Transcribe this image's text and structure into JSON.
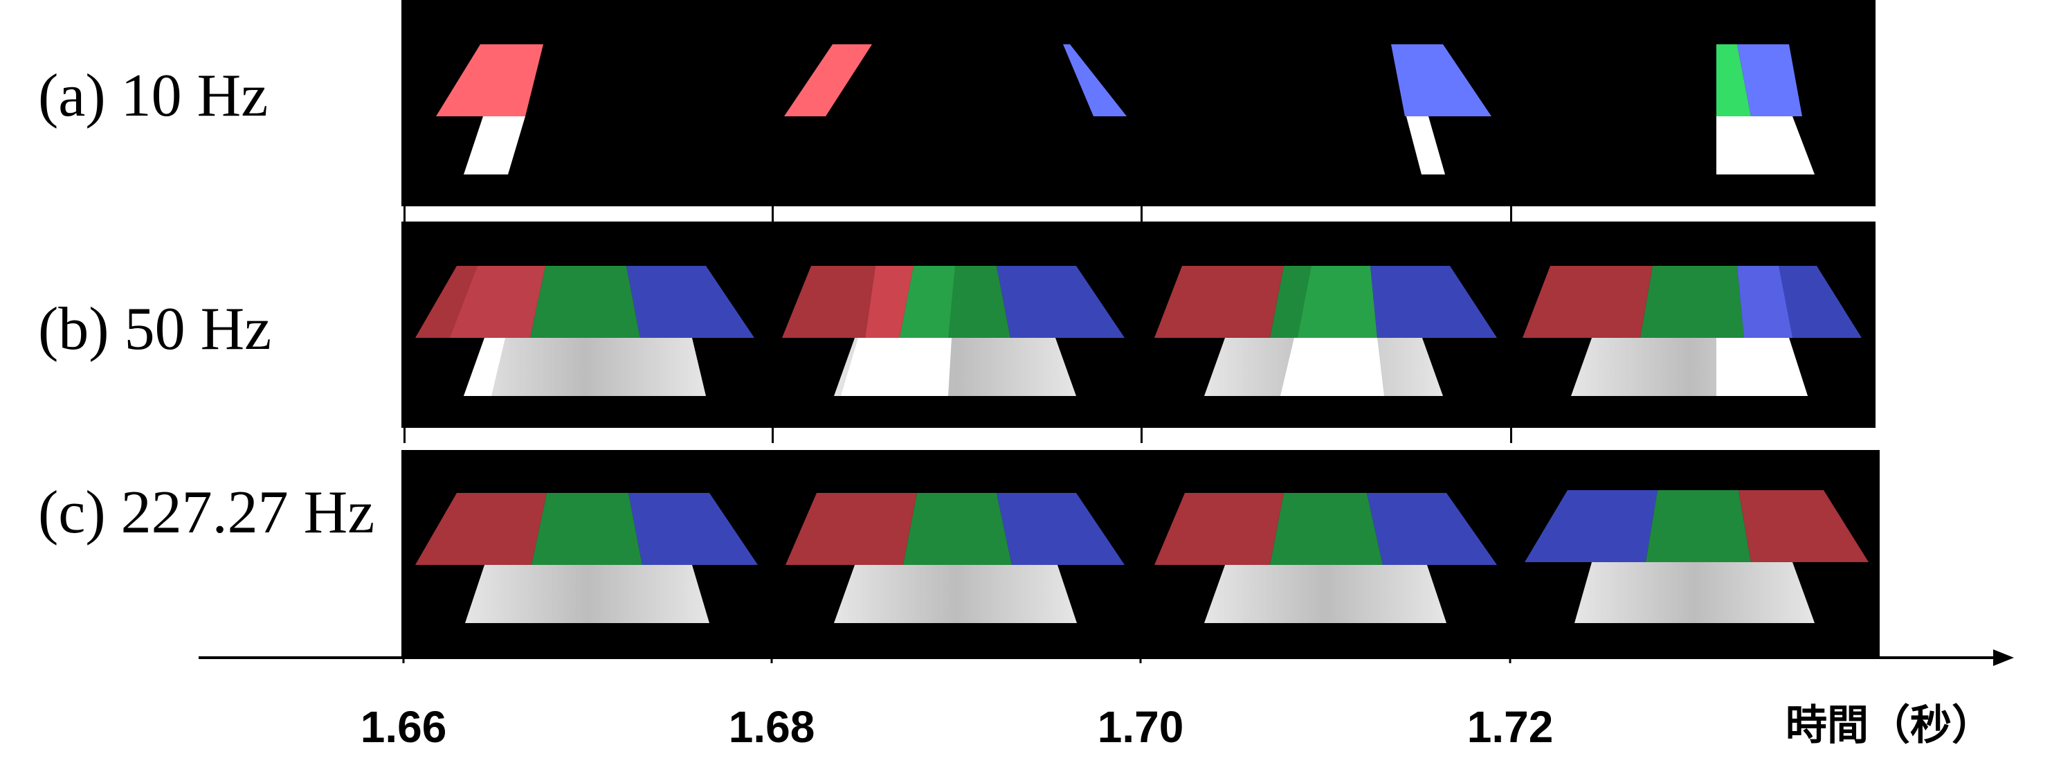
{
  "rows": [
    {
      "label": "(a) 10 Hz"
    },
    {
      "label": "(b) 50 Hz"
    },
    {
      "label": "(c) 227.27 Hz"
    }
  ],
  "axis": {
    "ticks": [
      "1.66",
      "1.68",
      "1.70",
      "1.72"
    ],
    "title": "時間（秒）"
  },
  "colors": {
    "background": "#000000",
    "red_bright": "#ff6670",
    "blue_bright": "#6678ff",
    "green_bright": "#33dd66",
    "red_dim": "#a8343c",
    "green_dim": "#1f8a3c",
    "blue_dim": "#3a46b8",
    "white": "#ffffff",
    "gray": "#c8c8c8"
  }
}
